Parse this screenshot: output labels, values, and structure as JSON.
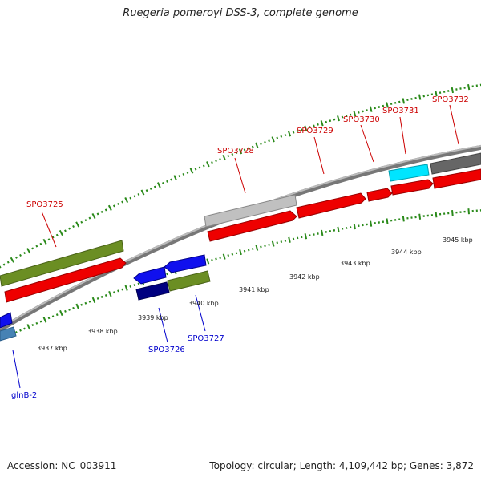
{
  "title": "Ruegeria pomeroyi DSS-3, complete genome",
  "footer": {
    "accession": "Accession: NC_003911",
    "topology": "Topology: circular; Length: 4,109,442 bp; Genes: 3,872"
  },
  "colors": {
    "backbone": "#888888",
    "tick": "#2a8a1a",
    "red_gene": "#ff0000",
    "olive_gene": "#6b8e23",
    "blue_gene": "#1010ee",
    "navy_gene": "#000080",
    "cyan_gene": "#00e5ff",
    "gray_gene": "#bbbbbb",
    "dark_gray_gene": "#666666",
    "steel_gene": "#4682b4",
    "label_red": "#cc0000",
    "label_blue": "#0000cc"
  },
  "kbp_labels": [
    "3937 kbp",
    "3938 kbp",
    "3939 kbp",
    "3940 kbp",
    "3941 kbp",
    "3942 kbp",
    "3943 kbp",
    "3944 kbp",
    "3945 kbp"
  ],
  "gene_labels_top": [
    "SPO3725",
    "SPO3728",
    "SPO3729",
    "SPO3730",
    "SPO3731",
    "SPO3732"
  ],
  "gene_labels_bottom": [
    "SPO3726",
    "SPO3727",
    "glnB-2"
  ]
}
